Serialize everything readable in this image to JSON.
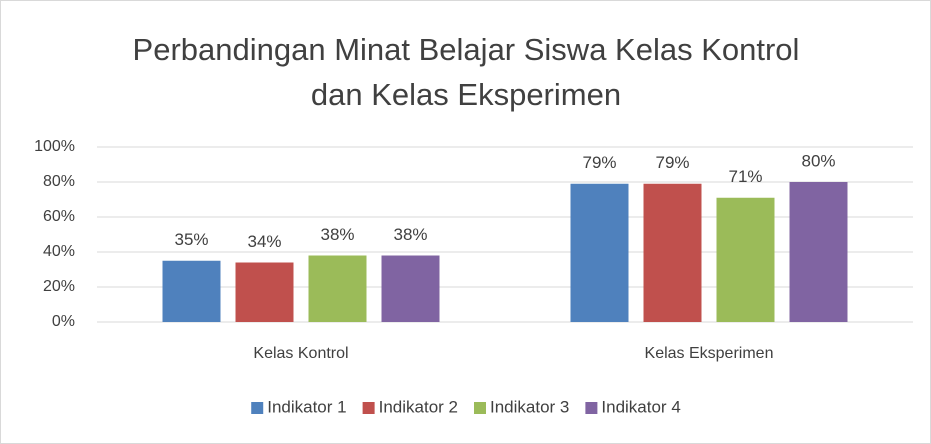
{
  "chart_data": {
    "type": "bar",
    "title": [
      "Perbandingan Minat Belajar Siswa Kelas Kontrol",
      "dan Kelas Eksperimen"
    ],
    "categories": [
      "Kelas Kontrol",
      "Kelas Eksperimen"
    ],
    "series": [
      {
        "name": "Indikator 1",
        "color": "#4f81bd",
        "values": [
          35,
          79
        ],
        "value_labels": [
          "35%",
          "79%"
        ]
      },
      {
        "name": "Indikator 2",
        "color": "#c0504d",
        "values": [
          34,
          79
        ],
        "value_labels": [
          "34%",
          "79%"
        ]
      },
      {
        "name": "Indikator 3",
        "color": "#9bbb59",
        "values": [
          38,
          71
        ],
        "value_labels": [
          "38%",
          "71%"
        ]
      },
      {
        "name": "Indikator 4",
        "color": "#8064a2",
        "values": [
          38,
          80
        ],
        "value_labels": [
          "38%",
          "80%"
        ]
      }
    ],
    "ylim": [
      0,
      100
    ],
    "yticks": [
      {
        "value": 0,
        "label": "0%"
      },
      {
        "value": 20,
        "label": "20%"
      },
      {
        "value": 40,
        "label": "40%"
      },
      {
        "value": 60,
        "label": "60%"
      },
      {
        "value": 80,
        "label": "80%"
      },
      {
        "value": 100,
        "label": "100%"
      }
    ],
    "grid": true,
    "legend": "bottom"
  }
}
